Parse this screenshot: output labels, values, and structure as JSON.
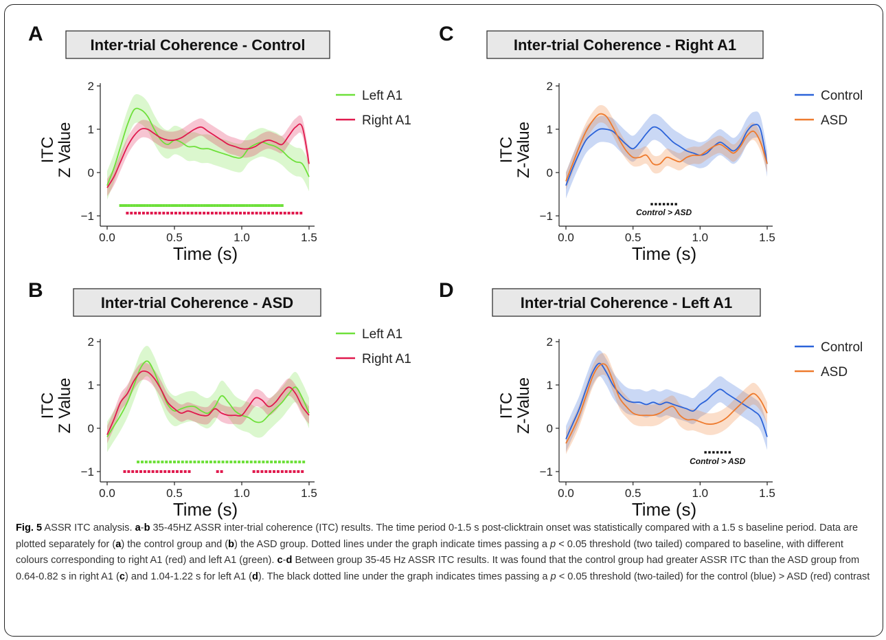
{
  "panels": [
    {
      "letter": "A",
      "title": "Inter-trial Coherence - Control",
      "ylabel_1": "ITC",
      "ylabel_2": "Z Value",
      "xlabel": "Time (s)",
      "annotation": ""
    },
    {
      "letter": "B",
      "title": "Inter-trial Coherence - ASD",
      "ylabel_1": "ITC",
      "ylabel_2": "Z Value",
      "xlabel": "Time (s)",
      "annotation": ""
    },
    {
      "letter": "C",
      "title": "Inter-trial Coherence - Right A1",
      "ylabel_1": "ITC",
      "ylabel_2": "Z-Value",
      "xlabel": "Time (s)",
      "annotation": "Control > ASD"
    },
    {
      "letter": "D",
      "title": "Inter-trial Coherence - Left A1",
      "ylabel_1": "ITC",
      "ylabel_2": "Z-Value",
      "xlabel": "Time (s)",
      "annotation": "Control > ASD"
    }
  ],
  "colors": {
    "left_a1": "#6ee03a",
    "right_a1": "#e0194d",
    "control": "#2b63d9",
    "asd": "#ee7a2d",
    "sig_black": "#111111"
  },
  "chart_data": [
    {
      "type": "line",
      "title": "Inter-trial Coherence - Control",
      "xlabel": "Time (s)",
      "ylabel": "ITC Z Value",
      "xlim": [
        0,
        1.5
      ],
      "ylim": [
        -1,
        2
      ],
      "xticks": [
        "0.0",
        "0.5",
        "1.0",
        "1.5"
      ],
      "yticks": [
        "−1",
        "0",
        "1",
        "2"
      ],
      "legend": "right",
      "x": [
        0.0,
        0.05,
        0.1,
        0.15,
        0.2,
        0.25,
        0.3,
        0.35,
        0.4,
        0.45,
        0.5,
        0.55,
        0.6,
        0.65,
        0.7,
        0.75,
        0.8,
        0.85,
        0.9,
        0.95,
        1.0,
        1.05,
        1.1,
        1.15,
        1.2,
        1.25,
        1.3,
        1.35,
        1.4,
        1.45,
        1.5
      ],
      "series": [
        {
          "name": "Left A1",
          "color": "#6ee03a",
          "values": [
            -0.3,
            0.1,
            0.6,
            1.1,
            1.45,
            1.45,
            1.3,
            1.0,
            0.75,
            0.65,
            0.75,
            0.7,
            0.6,
            0.6,
            0.55,
            0.55,
            0.5,
            0.45,
            0.4,
            0.35,
            0.35,
            0.55,
            0.65,
            0.7,
            0.65,
            0.6,
            0.5,
            0.35,
            0.25,
            0.2,
            -0.1
          ],
          "band": 0.33,
          "significance": [
            0.1,
            0.12,
            0.14,
            0.16,
            0.18,
            0.2,
            0.22,
            0.24,
            0.26,
            0.28,
            0.3,
            0.32,
            0.34,
            0.36,
            0.38,
            0.4,
            0.42,
            0.44,
            0.46,
            0.48,
            0.5,
            0.52,
            0.54,
            0.56,
            0.58,
            0.6,
            0.62,
            0.64,
            0.66,
            0.68,
            0.7,
            0.72,
            0.74,
            0.76,
            0.78,
            0.8,
            0.82,
            0.84,
            0.86,
            0.88,
            0.9,
            0.92,
            0.94,
            0.96,
            0.98,
            1.0,
            1.02,
            1.04,
            1.06,
            1.08,
            1.1,
            1.12,
            1.14,
            1.16,
            1.18,
            1.2,
            1.22,
            1.24,
            1.26,
            1.28,
            1.3
          ]
        },
        {
          "name": "Right A1",
          "color": "#e0194d",
          "values": [
            -0.35,
            -0.1,
            0.25,
            0.6,
            0.85,
            1.0,
            1.0,
            0.9,
            0.8,
            0.75,
            0.75,
            0.8,
            0.9,
            1.0,
            1.05,
            0.95,
            0.85,
            0.75,
            0.65,
            0.6,
            0.55,
            0.55,
            0.6,
            0.7,
            0.75,
            0.7,
            0.65,
            0.85,
            1.05,
            1.05,
            0.2
          ],
          "band": 0.2,
          "significance": [
            0.15,
            0.18,
            0.21,
            0.24,
            0.27,
            0.3,
            0.33,
            0.36,
            0.39,
            0.42,
            0.45,
            0.48,
            0.51,
            0.54,
            0.57,
            0.6,
            0.63,
            0.66,
            0.69,
            0.72,
            0.75,
            0.78,
            0.81,
            0.84,
            0.87,
            0.9,
            0.93,
            0.96,
            0.99,
            1.02,
            1.05,
            1.08,
            1.11,
            1.14,
            1.17,
            1.2,
            1.23,
            1.26,
            1.29,
            1.32,
            1.35,
            1.38,
            1.41,
            1.44
          ]
        }
      ]
    },
    {
      "type": "line",
      "title": "Inter-trial Coherence - ASD",
      "xlabel": "Time (s)",
      "ylabel": "ITC Z Value",
      "xlim": [
        0,
        1.5
      ],
      "ylim": [
        -1,
        2
      ],
      "xticks": [
        "0.0",
        "0.5",
        "1.0",
        "1.5"
      ],
      "yticks": [
        "−1",
        "0",
        "1",
        "2"
      ],
      "legend": "right",
      "x": [
        0.0,
        0.05,
        0.1,
        0.15,
        0.2,
        0.25,
        0.3,
        0.35,
        0.4,
        0.45,
        0.5,
        0.55,
        0.6,
        0.65,
        0.7,
        0.75,
        0.8,
        0.85,
        0.9,
        0.95,
        1.0,
        1.05,
        1.1,
        1.15,
        1.2,
        1.25,
        1.3,
        1.35,
        1.4,
        1.45,
        1.5
      ],
      "series": [
        {
          "name": "Left A1",
          "color": "#6ee03a",
          "values": [
            -0.2,
            0.05,
            0.3,
            0.6,
            1.0,
            1.4,
            1.55,
            1.3,
            0.9,
            0.55,
            0.4,
            0.45,
            0.5,
            0.5,
            0.4,
            0.35,
            0.5,
            0.75,
            0.6,
            0.4,
            0.3,
            0.25,
            0.15,
            0.15,
            0.3,
            0.45,
            0.6,
            0.8,
            0.95,
            0.7,
            0.35
          ],
          "band": 0.35,
          "significance": [
            0.23,
            0.26,
            0.29,
            0.32,
            0.35,
            0.38,
            0.41,
            0.44,
            0.47,
            0.5,
            0.53,
            0.56,
            0.59,
            0.62,
            0.65,
            0.68,
            0.71,
            0.74,
            0.77,
            0.8,
            0.83,
            0.86,
            0.89,
            0.92,
            0.95,
            0.98,
            1.01,
            1.04,
            1.07,
            1.1,
            1.13,
            1.16,
            1.19,
            1.22,
            1.25,
            1.28,
            1.31,
            1.34,
            1.37,
            1.4,
            1.43,
            1.46
          ]
        },
        {
          "name": "Right A1",
          "color": "#e0194d",
          "values": [
            -0.15,
            0.2,
            0.6,
            0.8,
            1.1,
            1.3,
            1.3,
            1.15,
            0.9,
            0.6,
            0.45,
            0.35,
            0.4,
            0.35,
            0.3,
            0.3,
            0.45,
            0.35,
            0.3,
            0.3,
            0.3,
            0.5,
            0.7,
            0.65,
            0.5,
            0.6,
            0.8,
            0.95,
            0.8,
            0.5,
            0.3
          ],
          "band": 0.2,
          "significance": [
            0.13,
            0.16,
            0.19,
            0.22,
            0.25,
            0.28,
            0.31,
            0.34,
            0.37,
            0.4,
            0.43,
            0.46,
            0.49,
            0.52,
            0.55,
            0.58,
            0.61,
            0.82,
            0.85,
            1.09,
            1.12,
            1.15,
            1.18,
            1.21,
            1.24,
            1.27,
            1.3,
            1.33,
            1.36,
            1.39,
            1.42,
            1.45
          ]
        }
      ]
    },
    {
      "type": "line",
      "title": "Inter-trial Coherence - Right A1",
      "xlabel": "Time (s)",
      "ylabel": "ITC Z-Value",
      "xlim": [
        0,
        1.5
      ],
      "ylim": [
        -1,
        2
      ],
      "xticks": [
        "0.0",
        "0.5",
        "1.0",
        "1.5"
      ],
      "yticks": [
        "−1",
        "0",
        "1",
        "2"
      ],
      "legend": "right",
      "annotation": "Control > ASD",
      "significance": [
        0.64,
        0.67,
        0.7,
        0.73,
        0.76,
        0.79,
        0.82
      ],
      "x": [
        0.0,
        0.05,
        0.1,
        0.15,
        0.2,
        0.25,
        0.3,
        0.35,
        0.4,
        0.45,
        0.5,
        0.55,
        0.6,
        0.65,
        0.7,
        0.75,
        0.8,
        0.85,
        0.9,
        0.95,
        1.0,
        1.05,
        1.1,
        1.15,
        1.2,
        1.25,
        1.3,
        1.35,
        1.4,
        1.45,
        1.5
      ],
      "series": [
        {
          "name": "Control",
          "color": "#2b63d9",
          "values": [
            -0.3,
            0.1,
            0.45,
            0.75,
            0.9,
            1.0,
            1.0,
            0.95,
            0.8,
            0.65,
            0.55,
            0.7,
            0.9,
            1.05,
            1.0,
            0.85,
            0.7,
            0.6,
            0.5,
            0.45,
            0.4,
            0.45,
            0.6,
            0.7,
            0.6,
            0.5,
            0.65,
            0.95,
            1.1,
            1.0,
            0.2
          ],
          "band": 0.3
        },
        {
          "name": "ASD",
          "color": "#ee7a2d",
          "values": [
            -0.2,
            0.2,
            0.6,
            0.95,
            1.2,
            1.35,
            1.3,
            1.05,
            0.75,
            0.5,
            0.35,
            0.35,
            0.4,
            0.2,
            0.2,
            0.35,
            0.3,
            0.25,
            0.35,
            0.4,
            0.4,
            0.5,
            0.6,
            0.65,
            0.55,
            0.45,
            0.6,
            0.85,
            0.95,
            0.7,
            0.2
          ],
          "band": 0.2
        }
      ]
    },
    {
      "type": "line",
      "title": "Inter-trial Coherence - Left A1",
      "xlabel": "Time (s)",
      "ylabel": "ITC Z-Value",
      "xlim": [
        0,
        1.5
      ],
      "ylim": [
        -1,
        2
      ],
      "xticks": [
        "0.0",
        "0.5",
        "1.0",
        "1.5"
      ],
      "yticks": [
        "−1",
        "0",
        "1",
        "2"
      ],
      "legend": "right",
      "annotation": "Control > ASD",
      "significance": [
        1.04,
        1.07,
        1.1,
        1.13,
        1.16,
        1.19,
        1.22
      ],
      "x": [
        0.0,
        0.05,
        0.1,
        0.15,
        0.2,
        0.25,
        0.3,
        0.35,
        0.4,
        0.45,
        0.5,
        0.55,
        0.6,
        0.65,
        0.7,
        0.75,
        0.8,
        0.85,
        0.9,
        0.95,
        1.0,
        1.05,
        1.1,
        1.15,
        1.2,
        1.25,
        1.3,
        1.35,
        1.4,
        1.45,
        1.5
      ],
      "series": [
        {
          "name": "Control",
          "color": "#2b63d9",
          "values": [
            -0.25,
            0.1,
            0.45,
            0.9,
            1.3,
            1.5,
            1.3,
            1.0,
            0.8,
            0.65,
            0.6,
            0.6,
            0.55,
            0.6,
            0.55,
            0.6,
            0.55,
            0.5,
            0.45,
            0.4,
            0.55,
            0.65,
            0.8,
            0.9,
            0.8,
            0.7,
            0.6,
            0.5,
            0.4,
            0.25,
            -0.2
          ],
          "band": 0.3
        },
        {
          "name": "ASD",
          "color": "#ee7a2d",
          "values": [
            -0.35,
            -0.05,
            0.3,
            0.75,
            1.2,
            1.45,
            1.45,
            1.1,
            0.7,
            0.5,
            0.35,
            0.3,
            0.3,
            0.3,
            0.35,
            0.45,
            0.5,
            0.3,
            0.2,
            0.2,
            0.15,
            0.1,
            0.1,
            0.15,
            0.25,
            0.4,
            0.55,
            0.7,
            0.8,
            0.65,
            0.35
          ],
          "band": 0.25
        }
      ]
    }
  ],
  "caption": {
    "fig_label": "Fig. 5",
    "seg1": " ASSR ITC analysis. ",
    "b1": "a",
    "seg2": "-",
    "b2": "b",
    "seg3": " 35-45HZ ASSR inter-trial coherence (ITC) results. The time period 0-1.5 s post-clicktrain onset was statistically compared with a 1.5 s baseline period. Data are plotted separately for (",
    "b3": "a",
    "seg4": ") the control group and (",
    "b4": "b",
    "seg5": ") the ASD group. Dotted lines under the graph indicate times passing a ",
    "i1": "p",
    "seg6": " < 0.05 threshold (two tailed) compared to baseline, with different colours corresponding to right A1 (red) and left A1 (green). ",
    "b5": "c",
    "seg7": "-",
    "b6": "d",
    "seg8": " Between group 35-45 Hz ASSR ITC results. It was found that the control group had greater ASSR ITC than the ASD group from 0.64-0.82 s in right A1 (",
    "b7": "c",
    "seg9": ") and 1.04-1.22 s for left A1 (",
    "b8": "d",
    "seg10": "). The black dotted line under the graph indicates times passing a ",
    "i2": "p",
    "seg11": " < 0.05 threshold (two-tailed) for the control (blue) > ASD (red) contrast"
  }
}
